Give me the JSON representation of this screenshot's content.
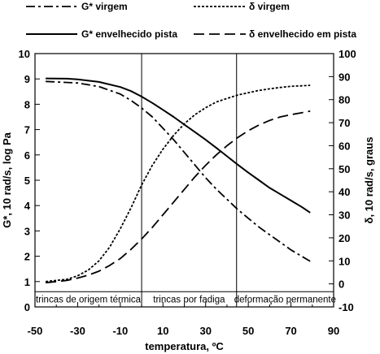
{
  "chart_data": {
    "type": "line",
    "xlabel": "temperatura, ºC",
    "ylabel_left": "G*, 10 rad/s, log Pa",
    "ylabel_right": "δ, 10 rad/s, graus",
    "xlim": [
      -50,
      90
    ],
    "ylim_left": [
      0,
      10
    ],
    "ylim_right": [
      -10,
      100
    ],
    "x_ticks": [
      "-50",
      "-30",
      "-10",
      "10",
      "30",
      "50",
      "70",
      "90"
    ],
    "y_left_ticks": [
      "0",
      "1",
      "2",
      "3",
      "4",
      "5",
      "6",
      "7",
      "8",
      "9",
      "10"
    ],
    "y_right_ticks": [
      "-10",
      "0",
      "10",
      "20",
      "30",
      "40",
      "50",
      "60",
      "70",
      "80",
      "90",
      "100"
    ],
    "grid": false,
    "legend_position": "top, outside plot",
    "zones": {
      "dividers_x": [
        0,
        44.5
      ],
      "labels": [
        "trincas de origem térmica",
        "trincas por fadiga",
        "deformação permanente"
      ],
      "band_y_left": [
        -0.3,
        0.6
      ]
    },
    "series": [
      {
        "name": "G* virgem",
        "axis": "left",
        "style": "dash-dot",
        "x": [
          -45,
          -30,
          -20,
          -10,
          -5,
          0,
          5,
          10,
          15,
          20,
          25,
          30,
          35,
          40,
          45,
          50,
          55,
          60,
          65,
          70,
          75,
          79
        ],
        "y": [
          8.9,
          8.84,
          8.7,
          8.4,
          8.15,
          7.85,
          7.5,
          7.05,
          6.6,
          6.1,
          5.6,
          5.1,
          4.65,
          4.25,
          3.85,
          3.5,
          3.15,
          2.85,
          2.55,
          2.25,
          2.0,
          1.8
        ]
      },
      {
        "name": "δ virgem",
        "axis": "right",
        "style": "dotted",
        "x": [
          -45,
          -35,
          -30,
          -25,
          -20,
          -15,
          -10,
          -5,
          0,
          5,
          10,
          15,
          20,
          25,
          30,
          35,
          40,
          45,
          50,
          55,
          60,
          65,
          70,
          75,
          79
        ],
        "y": [
          1,
          2,
          3.5,
          6,
          10,
          16,
          24,
          33,
          43,
          51.5,
          58.5,
          64.5,
          69.5,
          73.5,
          76.5,
          79,
          80.5,
          82,
          83,
          84,
          84.7,
          85.3,
          85.8,
          86,
          86.2
        ]
      },
      {
        "name": "G* envelhecido pista",
        "axis": "left",
        "style": "solid",
        "x": [
          -45,
          -35,
          -30,
          -20,
          -10,
          -5,
          0,
          5,
          10,
          15,
          20,
          25,
          30,
          35,
          40,
          45,
          50,
          55,
          60,
          65,
          70,
          75,
          79
        ],
        "y": [
          9.02,
          9.01,
          8.98,
          8.88,
          8.68,
          8.52,
          8.3,
          8.05,
          7.78,
          7.5,
          7.2,
          6.9,
          6.6,
          6.28,
          5.95,
          5.62,
          5.3,
          5.0,
          4.7,
          4.45,
          4.2,
          3.95,
          3.72
        ]
      },
      {
        "name": "δ envelhecido em pista",
        "axis": "right",
        "style": "dashed",
        "x": [
          -45,
          -35,
          -30,
          -25,
          -20,
          -15,
          -10,
          -5,
          0,
          5,
          10,
          15,
          20,
          25,
          30,
          35,
          40,
          45,
          50,
          55,
          60,
          65,
          70,
          75,
          79
        ],
        "y": [
          0.5,
          1.5,
          2.5,
          3.8,
          5.5,
          8,
          11,
          15,
          19.5,
          24.5,
          30,
          35.5,
          41,
          46.5,
          51.5,
          56,
          60,
          63.5,
          66.5,
          69,
          71,
          72.5,
          73.5,
          74.3,
          75
        ]
      }
    ]
  }
}
